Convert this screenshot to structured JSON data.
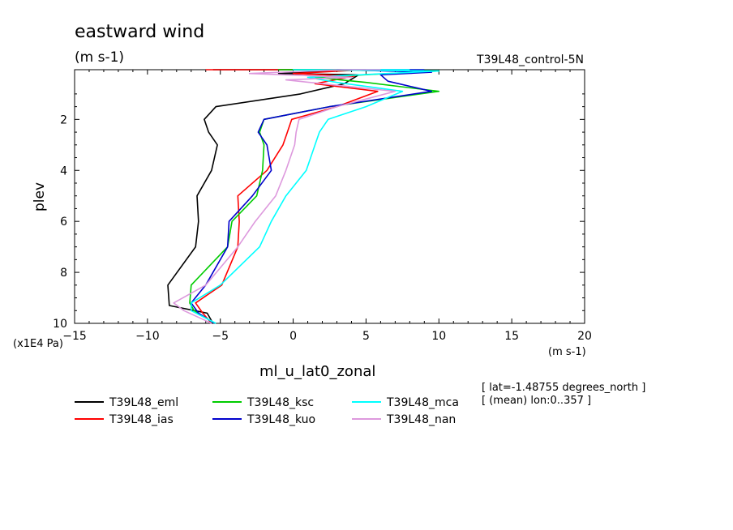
{
  "chart_data": {
    "type": "line",
    "title": "eastward wind",
    "title_units": "(m s-1)",
    "experiment": "T39L48_control-5N",
    "xlabel": "ml_u_lat0_zonal",
    "x_units": "(m s-1)",
    "ylabel": "plev",
    "y_units": "(x1E4 Pa)",
    "xlim": [
      -15,
      20
    ],
    "ylim": [
      0.05,
      10
    ],
    "y_inverted": true,
    "x_ticks": [
      -15,
      -10,
      -5,
      0,
      5,
      10,
      15,
      20
    ],
    "y_ticks": [
      2,
      4,
      6,
      8,
      10
    ],
    "grid": false,
    "legend_position": "bottom",
    "notes": [
      "[ lat=-1.48755 degrees_north ]",
      "[ (mean) lon:0..357 ]"
    ],
    "series": [
      {
        "name": "T39L48_eml",
        "color": "#000000",
        "points": [
          [
            -5.5,
            10
          ],
          [
            -5.9,
            9.6
          ],
          [
            -8.5,
            9.3
          ],
          [
            -8.6,
            8.5
          ],
          [
            -6.7,
            7
          ],
          [
            -6.5,
            6
          ],
          [
            -6.6,
            5
          ],
          [
            -5.6,
            4
          ],
          [
            -5.2,
            3
          ],
          [
            -5.8,
            2.5
          ],
          [
            -6.1,
            2
          ],
          [
            -5.3,
            1.5
          ],
          [
            0.5,
            1.0
          ],
          [
            3.5,
            0.6
          ],
          [
            4.5,
            0.25
          ],
          [
            -1,
            0.2
          ],
          [
            4,
            0.05
          ],
          [
            -5.5,
            0.05
          ]
        ]
      },
      {
        "name": "T39L48_ias",
        "color": "#ff0000",
        "points": [
          [
            -5.6,
            10
          ],
          [
            -6.2,
            9.6
          ],
          [
            -6.7,
            9.2
          ],
          [
            -4.9,
            8.5
          ],
          [
            -3.8,
            7
          ],
          [
            -3.7,
            6
          ],
          [
            -3.8,
            5
          ],
          [
            -1.8,
            4
          ],
          [
            -0.7,
            3
          ],
          [
            -0.4,
            2.5
          ],
          [
            -0.1,
            2
          ],
          [
            3,
            1.5
          ],
          [
            5.8,
            0.9
          ],
          [
            1.5,
            0.6
          ],
          [
            4.2,
            0.3
          ],
          [
            0,
            0.2
          ],
          [
            5,
            0.05
          ],
          [
            -6,
            0.05
          ]
        ]
      },
      {
        "name": "T39L48_ksc",
        "color": "#00cc00",
        "points": [
          [
            -5.4,
            10
          ],
          [
            -6.8,
            9.5
          ],
          [
            -7.1,
            9.2
          ],
          [
            -7.0,
            8.5
          ],
          [
            -4.5,
            7
          ],
          [
            -4.2,
            6
          ],
          [
            -2.5,
            5
          ],
          [
            -2.1,
            4
          ],
          [
            -2.0,
            3
          ],
          [
            -2.3,
            2.5
          ],
          [
            -2.0,
            2
          ],
          [
            2.5,
            1.5
          ],
          [
            10,
            0.9
          ],
          [
            5,
            0.55
          ],
          [
            1.5,
            0.35
          ],
          [
            10,
            0.1
          ],
          [
            -1,
            0.05
          ],
          [
            2,
            0.05
          ]
        ]
      },
      {
        "name": "T39L48_kuo",
        "color": "#0000cc",
        "points": [
          [
            -5.4,
            10
          ],
          [
            -6.5,
            9.6
          ],
          [
            -7.0,
            9.2
          ],
          [
            -6.0,
            8.5
          ],
          [
            -4.5,
            7
          ],
          [
            -4.4,
            6
          ],
          [
            -2.8,
            5
          ],
          [
            -1.5,
            4
          ],
          [
            -1.8,
            3
          ],
          [
            -2.4,
            2.5
          ],
          [
            -2.0,
            2
          ],
          [
            2.5,
            1.5
          ],
          [
            9.5,
            0.9
          ],
          [
            6.5,
            0.5
          ],
          [
            6,
            0.25
          ],
          [
            9.5,
            0.15
          ],
          [
            3,
            0.05
          ],
          [
            9,
            0.05
          ]
        ]
      },
      {
        "name": "T39L48_mca",
        "color": "#00ffff",
        "points": [
          [
            -5.3,
            10
          ],
          [
            -7.0,
            9.5
          ],
          [
            -7.0,
            9.2
          ],
          [
            -5.0,
            8.5
          ],
          [
            -2.3,
            7
          ],
          [
            -1.5,
            6
          ],
          [
            -0.5,
            5
          ],
          [
            0.9,
            4
          ],
          [
            1.5,
            3
          ],
          [
            1.8,
            2.5
          ],
          [
            2.4,
            2
          ],
          [
            5,
            1.5
          ],
          [
            7.5,
            0.9
          ],
          [
            3,
            0.55
          ],
          [
            1,
            0.35
          ],
          [
            10,
            0.1
          ],
          [
            0,
            0.05
          ],
          [
            8,
            0.05
          ]
        ]
      },
      {
        "name": "T39L48_nan",
        "color": "#dd99dd",
        "points": [
          [
            -5.6,
            10
          ],
          [
            -7.5,
            9.5
          ],
          [
            -8.2,
            9.2
          ],
          [
            -6.0,
            8.5
          ],
          [
            -3.8,
            7
          ],
          [
            -2.6,
            6
          ],
          [
            -1.2,
            5
          ],
          [
            -0.5,
            4
          ],
          [
            0.1,
            3
          ],
          [
            0.2,
            2.5
          ],
          [
            0.4,
            2
          ],
          [
            3,
            1.5
          ],
          [
            7,
            0.9
          ],
          [
            -0.5,
            0.45
          ],
          [
            4,
            0.35
          ],
          [
            -3,
            0.2
          ],
          [
            3.5,
            0.05
          ],
          [
            6,
            0.05
          ]
        ]
      }
    ]
  }
}
